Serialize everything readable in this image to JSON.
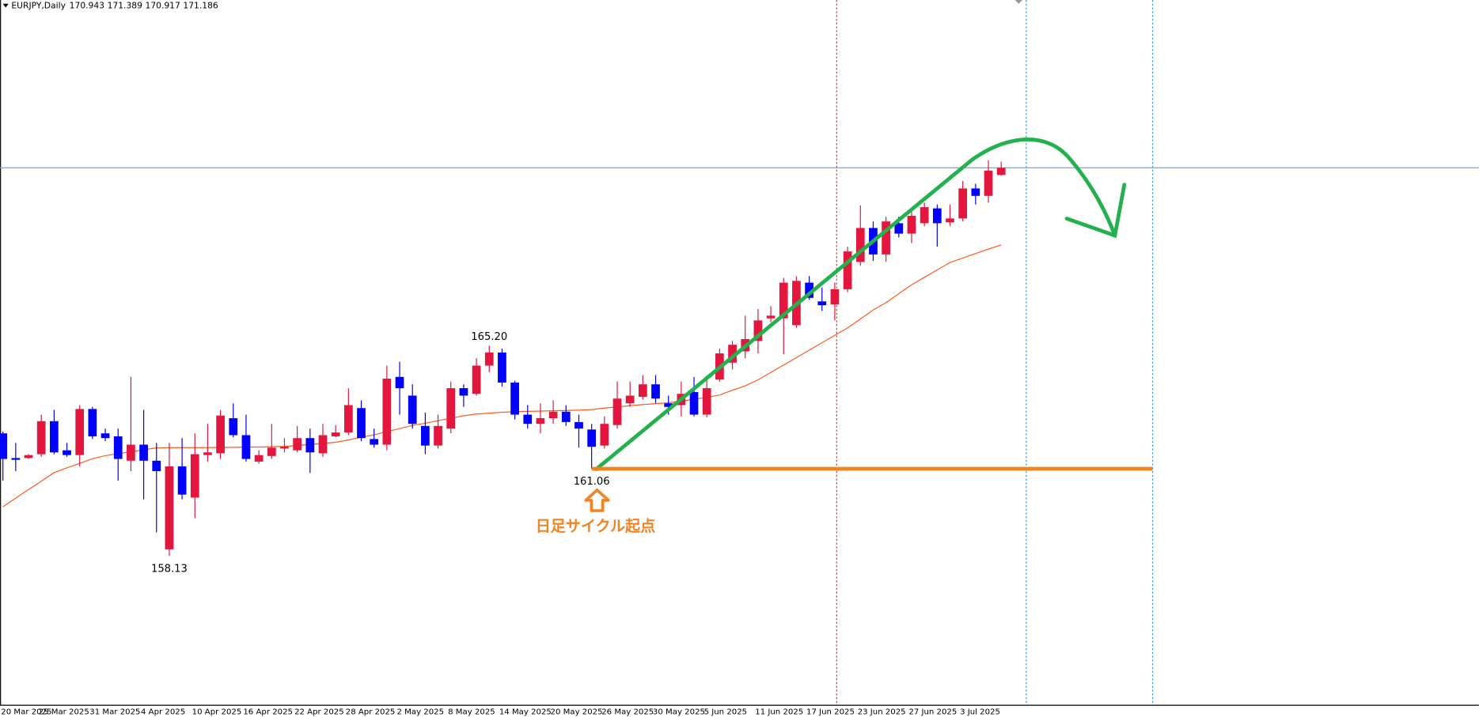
{
  "chart_data": {
    "type": "candlestick",
    "symbol": "EURJPY,Daily",
    "categories": [
      "20 Mar 2025",
      null,
      null,
      "25 Mar 2025",
      null,
      null,
      null,
      "31 Mar 2025",
      null,
      null,
      null,
      "4 Apr 2025",
      null,
      null,
      null,
      "10 Apr 2025",
      null,
      null,
      null,
      "16 Apr 2025",
      null,
      null,
      null,
      "22 Apr 2025",
      null,
      null,
      null,
      "28 Apr 2025",
      null,
      null,
      null,
      "2 May 2025",
      null,
      null,
      null,
      "8 May 2025",
      null,
      null,
      null,
      "14 May 2025",
      null,
      null,
      null,
      "20 May 2025",
      null,
      null,
      null,
      "26 May 2025",
      null,
      null,
      null,
      "30 May 2025",
      null,
      null,
      null,
      "5 Jun 2025",
      null,
      null,
      null,
      "11 Jun 2025",
      null,
      null,
      null,
      "17 Jun 2025",
      null,
      null,
      null,
      "23 Jun 2025",
      null,
      null,
      null,
      "27 Jun 2025",
      null,
      null,
      null,
      "3 Jul 2025",
      null,
      null,
      null
    ],
    "open": [
      162.25,
      161.42,
      161.42,
      161.55,
      162.66,
      161.68,
      161.52,
      163.07,
      162.25,
      162.15,
      161.33,
      161.87,
      161.33,
      158.35,
      161.14,
      160.09,
      161.52,
      161.58,
      162.76,
      162.19,
      161.3,
      161.49,
      161.74,
      161.68,
      162.09,
      161.58,
      162.15,
      162.28,
      163.1,
      162.06,
      161.87,
      164.15,
      163.52,
      162.5,
      161.84,
      162.41,
      163.77,
      163.58,
      164.53,
      164.97,
      163.96,
      162.88,
      162.57,
      162.76,
      162.98,
      162.63,
      162.38,
      161.84,
      162.53,
      163.26,
      163.48,
      163.9,
      163.26,
      163.2,
      163.64,
      162.88,
      164.06,
      164.63,
      165.01,
      165.36,
      166.12,
      166.12,
      165.89,
      167.32,
      166.69,
      166.59,
      167.1,
      168.02,
      169.16,
      168.27,
      169.32,
      168.97,
      169.32,
      169.82,
      169.35,
      169.48,
      170.49,
      170.24,
      170.943
    ],
    "high": [
      162.31,
      161.93,
      161.55,
      162.88,
      163.04,
      161.93,
      163.2,
      163.14,
      162.41,
      162.41,
      164.15,
      163.04,
      161.93,
      161.93,
      162.09,
      162.25,
      162.57,
      163.04,
      163.26,
      162.88,
      161.68,
      162.57,
      162.09,
      162.5,
      162.41,
      162.57,
      162.53,
      163.77,
      163.36,
      162.41,
      164.53,
      164.66,
      163.9,
      162.95,
      162.88,
      163.99,
      163.9,
      164.78,
      165.2,
      165.1,
      164.02,
      163.2,
      163.26,
      163.36,
      163.2,
      162.88,
      162.57,
      162.82,
      163.99,
      163.99,
      164.21,
      164.21,
      163.52,
      163.99,
      164.15,
      164.15,
      165.1,
      165.36,
      166.21,
      166.43,
      166.53,
      167.48,
      167.54,
      167.54,
      167.16,
      167.32,
      168.53,
      169.92,
      169.38,
      169.54,
      169.54,
      169.7,
      170.01,
      169.95,
      169.95,
      170.74,
      170.65,
      171.44,
      171.389
    ],
    "low": [
      160.66,
      160.98,
      161.39,
      161.46,
      161.55,
      161.46,
      161.14,
      162.06,
      161.99,
      160.66,
      160.98,
      160.03,
      158.92,
      158.13,
      160.03,
      159.4,
      161.3,
      161.39,
      162.12,
      161.3,
      161.23,
      161.39,
      161.61,
      161.61,
      160.92,
      161.46,
      162.12,
      162.19,
      161.99,
      161.77,
      161.68,
      162.88,
      162.41,
      161.55,
      161.74,
      162.25,
      163.14,
      163.52,
      164.31,
      163.83,
      162.72,
      162.41,
      162.25,
      162.57,
      162.5,
      161.77,
      161.06,
      161.74,
      162.41,
      163.14,
      163.39,
      163.26,
      162.88,
      162.82,
      162.82,
      162.79,
      163.99,
      164.4,
      164.78,
      164.94,
      165.99,
      164.91,
      165.8,
      166.75,
      166.37,
      166.05,
      167.0,
      167.89,
      168.05,
      168.02,
      168.84,
      168.65,
      169.22,
      168.53,
      169.22,
      169.38,
      169.95,
      170.01,
      170.917
    ],
    "close": [
      161.39,
      161.36,
      161.52,
      162.66,
      161.61,
      161.52,
      163.07,
      162.15,
      162.09,
      161.39,
      161.87,
      161.33,
      160.98,
      161.14,
      160.19,
      161.55,
      161.61,
      162.85,
      162.19,
      161.39,
      161.52,
      161.77,
      161.8,
      162.09,
      161.61,
      162.19,
      162.28,
      163.2,
      162.09,
      161.87,
      164.09,
      163.77,
      162.57,
      161.84,
      162.5,
      163.77,
      163.52,
      164.53,
      164.97,
      163.96,
      162.88,
      162.57,
      162.76,
      162.98,
      162.63,
      162.41,
      161.8,
      162.57,
      163.42,
      163.52,
      163.9,
      163.42,
      163.14,
      163.58,
      162.88,
      163.77,
      164.94,
      165.23,
      165.42,
      166.05,
      166.21,
      167.32,
      167.38,
      166.81,
      166.56,
      167.1,
      168.37,
      169.16,
      168.27,
      169.38,
      168.97,
      169.57,
      169.86,
      169.32,
      169.48,
      170.49,
      170.24,
      171.09,
      171.186
    ],
    "up_color": "#e3163d",
    "down_color": "#0000ff",
    "ma": {
      "color": "#ff5a1f",
      "values": [
        159.78,
        160.07,
        160.36,
        160.64,
        160.93,
        161.09,
        161.24,
        161.4,
        161.5,
        161.57,
        161.63,
        161.7,
        161.76,
        161.77,
        161.77,
        161.77,
        161.77,
        161.78,
        161.78,
        161.79,
        161.79,
        161.8,
        161.81,
        161.84,
        161.88,
        161.91,
        161.95,
        162.03,
        162.12,
        162.2,
        162.31,
        162.41,
        162.52,
        162.59,
        162.68,
        162.76,
        162.84,
        162.9,
        162.93,
        162.96,
        162.98,
        162.99,
        163.0,
        163.01,
        163.02,
        163.03,
        163.05,
        163.1,
        163.14,
        163.18,
        163.22,
        163.25,
        163.28,
        163.34,
        163.4,
        163.46,
        163.54,
        163.7,
        163.85,
        164.05,
        164.3,
        164.55,
        164.8,
        165.05,
        165.3,
        165.55,
        165.8,
        166.1,
        166.4,
        166.65,
        166.95,
        167.25,
        167.5,
        167.75,
        168.0,
        168.15,
        168.3,
        168.45,
        168.59
      ]
    },
    "ylim": [
      153.12,
      176.83
    ],
    "price_labels": [
      {
        "value": 165.2,
        "label": "165.20"
      },
      158.13,
      161.06
    ],
    "annotation_color": "#f58220",
    "annotation_text": "日足サイクル起点"
  }
}
